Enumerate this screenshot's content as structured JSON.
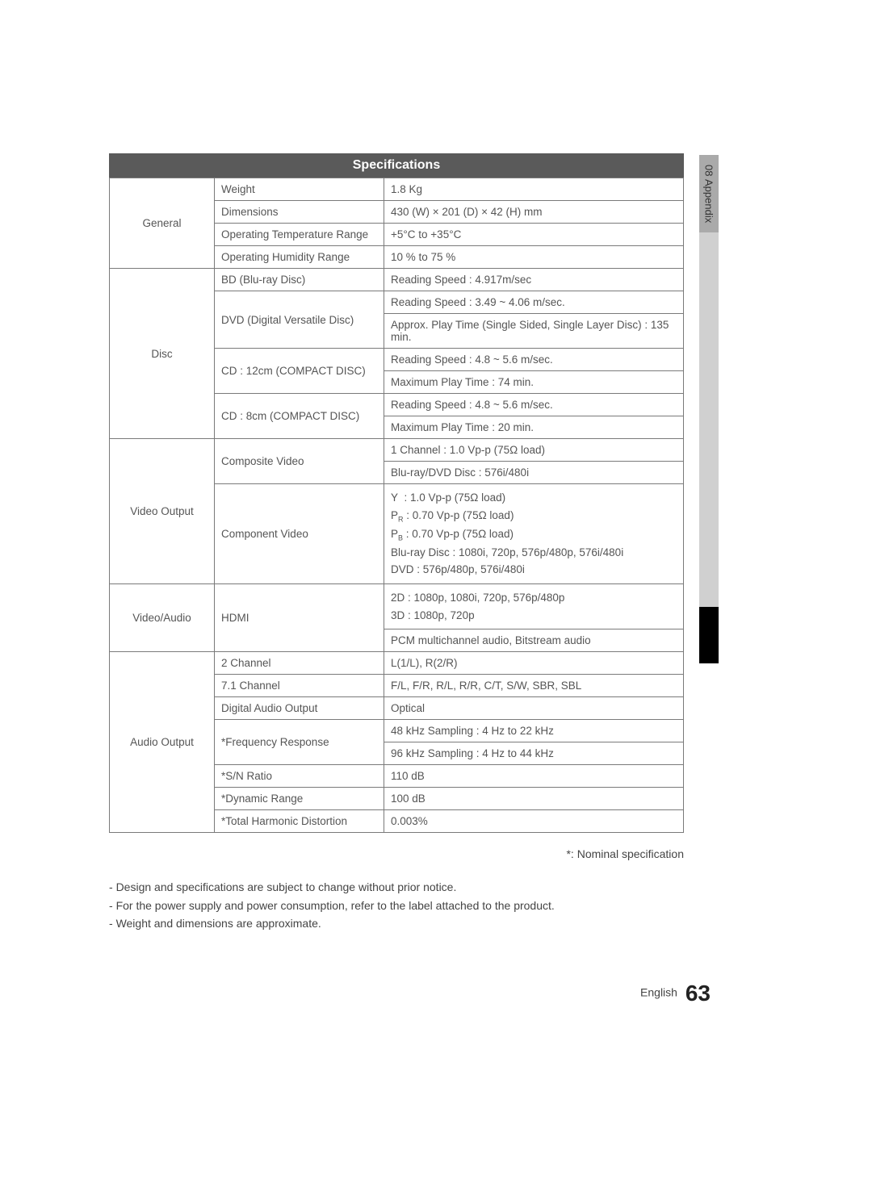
{
  "header": {
    "title": "Specifications"
  },
  "sidebar": {
    "num": "08",
    "label": "Appendix"
  },
  "rows": {
    "r1": {
      "cat": "General",
      "param": "Weight",
      "val": "1.8 Kg"
    },
    "r2": {
      "param": "Dimensions",
      "val": "430 (W) × 201 (D) × 42 (H) mm"
    },
    "r3": {
      "param": "Operating Temperature Range",
      "val": "+5°C to +35°C"
    },
    "r4": {
      "param": "Operating Humidity Range",
      "val": "10 % to 75 %"
    },
    "r5": {
      "cat": "Disc",
      "param": "BD (Blu-ray Disc)",
      "val": "Reading Speed : 4.917m/sec"
    },
    "r6": {
      "param": "DVD (Digital Versatile Disc)",
      "val1": "Reading Speed : 3.49 ~ 4.06 m/sec.",
      "val2": "Approx. Play Time (Single Sided, Single Layer Disc) : 135 min."
    },
    "r7": {
      "param": "CD : 12cm (COMPACT DISC)",
      "val1": "Reading Speed : 4.8 ~ 5.6 m/sec.",
      "val2": "Maximum Play Time : 74 min."
    },
    "r8": {
      "param": "CD : 8cm (COMPACT DISC)",
      "val1": "Reading Speed : 4.8 ~ 5.6 m/sec.",
      "val2": "Maximum Play Time : 20 min."
    },
    "r9": {
      "cat": "Video Output",
      "param": "Composite Video",
      "val1": "1 Channel : 1.0 Vp-p (75Ω load)",
      "val2": "Blu-ray/DVD Disc : 576i/480i"
    },
    "r10": {
      "param": "Component Video"
    },
    "r11": {
      "cat": "Video/Audio",
      "param": "HDMI",
      "val1a": "2D : 1080p, 1080i, 720p, 576p/480p",
      "val1b": "3D : 1080p, 720p",
      "val2": "PCM multichannel audio, Bitstream audio"
    },
    "r12": {
      "cat": "Audio Output",
      "param": "2 Channel",
      "val": "L(1/L), R(2/R)"
    },
    "r13": {
      "param": "7.1 Channel",
      "val": "F/L, F/R, R/L, R/R, C/T, S/W, SBR, SBL"
    },
    "r14": {
      "param": "Digital Audio Output",
      "val": "Optical"
    },
    "r15": {
      "param": "*Frequency Response",
      "val1": "48 kHz Sampling : 4 Hz to 22 kHz",
      "val2": "96 kHz Sampling : 4 Hz to 44 kHz"
    },
    "r16": {
      "param": "*S/N Ratio",
      "val": "110 dB"
    },
    "r17": {
      "param": "*Dynamic Range",
      "val": "100 dB"
    },
    "r18": {
      "param": "*Total Harmonic Distortion",
      "val": "0.003%"
    }
  },
  "component_video": {
    "l3": "Blu-ray Disc : 1080i, 720p, 576p/480p, 576i/480i",
    "l4": "DVD : 576p/480p, 576i/480i"
  },
  "footnote": "*: Nominal specification",
  "notes": {
    "n1": "Design and specifications are subject to change without prior notice.",
    "n2": "For the power supply and power consumption, refer to the label attached to the product.",
    "n3": "Weight and dimensions are approximate."
  },
  "footer": {
    "lang": "English",
    "page": "63"
  }
}
